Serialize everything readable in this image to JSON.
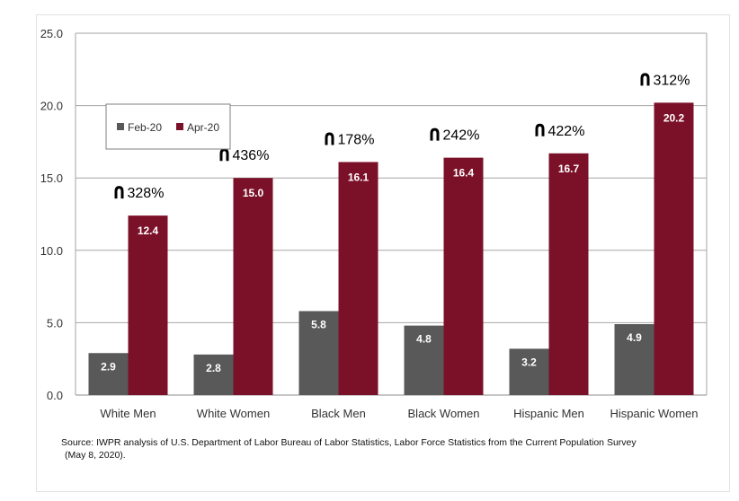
{
  "chart_data": {
    "type": "bar",
    "categories": [
      "White Men",
      "White Women",
      "Black Men",
      "Black Women",
      "Hispanic Men",
      "Hispanic Women"
    ],
    "series": [
      {
        "name": "Feb-20",
        "color": "#595959",
        "values": [
          2.9,
          2.8,
          5.8,
          4.8,
          3.2,
          4.9
        ]
      },
      {
        "name": "Apr-20",
        "color": "#7b1128",
        "values": [
          12.4,
          15.0,
          16.1,
          16.4,
          16.7,
          20.2
        ]
      }
    ],
    "annotations": [
      "328%",
      "436%",
      "178%",
      "242%",
      "422%",
      "312%"
    ],
    "annotation_icon": "up-arrow-icon",
    "y_ticks": [
      "0.0",
      "5.0",
      "10.0",
      "15.0",
      "20.0",
      "25.0"
    ],
    "ylim": [
      0,
      25
    ],
    "grid": true,
    "legend_position": "top-left"
  },
  "source": {
    "line1": "Source: IWPR analysis of U.S. Department of Labor Bureau of Labor Statistics, Labor Force Statistics from the Current Population Survey",
    "line2": "(May 8, 2020)."
  }
}
